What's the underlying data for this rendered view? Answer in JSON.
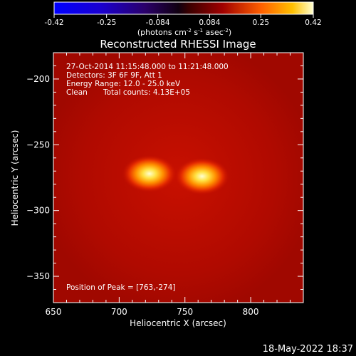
{
  "colorbar": {
    "ticks": [
      "-0.42",
      "-0.25",
      "-0.084",
      "0.084",
      "0.25",
      "0.42"
    ],
    "tick_values": [
      -0.42,
      -0.25,
      -0.084,
      0.084,
      0.25,
      0.42
    ],
    "range": [
      -0.42,
      0.42
    ],
    "unit_main": "(photons cm",
    "unit_sup1": "-2",
    "unit_mid": " s",
    "unit_sup2": "-1",
    "unit_end": " asec",
    "unit_sup3": "-2",
    "unit_close": ")"
  },
  "chart_data": {
    "type": "heatmap",
    "title": "Reconstructed RHESSI Image",
    "xlabel": "Heliocentric X (arcsec)",
    "ylabel": "Heliocentric Y (arcsec)",
    "xlim": [
      650,
      840
    ],
    "ylim": [
      -370,
      -180
    ],
    "xticks": [
      650,
      700,
      750,
      800
    ],
    "yticks": [
      -200,
      -250,
      -300,
      -350
    ],
    "xtick_labels": [
      "650",
      "700",
      "750",
      "800"
    ],
    "ytick_labels": [
      "−200",
      "−250",
      "−300",
      "−350"
    ],
    "sources": [
      {
        "x": 723,
        "y": -272,
        "peak": 0.42
      },
      {
        "x": 763,
        "y": -274,
        "peak": 0.42
      }
    ],
    "background_level": 0.15,
    "annotations": {
      "time": "27-Oct-2014 11:15:48.000 to 11:21:48.000",
      "detectors": "Detectors: 3F 6F 9F, Att 1",
      "energy": "Energy Range: 12.0 - 25.0 keV",
      "method": "Clean",
      "counts": "Total counts: 4.13E+05",
      "peak": "Position of Peak = [763,-274]"
    }
  },
  "footer": {
    "date": "18-May-2022 18:37"
  },
  "colors": {
    "background": "#000000",
    "text": "#ffffff"
  }
}
